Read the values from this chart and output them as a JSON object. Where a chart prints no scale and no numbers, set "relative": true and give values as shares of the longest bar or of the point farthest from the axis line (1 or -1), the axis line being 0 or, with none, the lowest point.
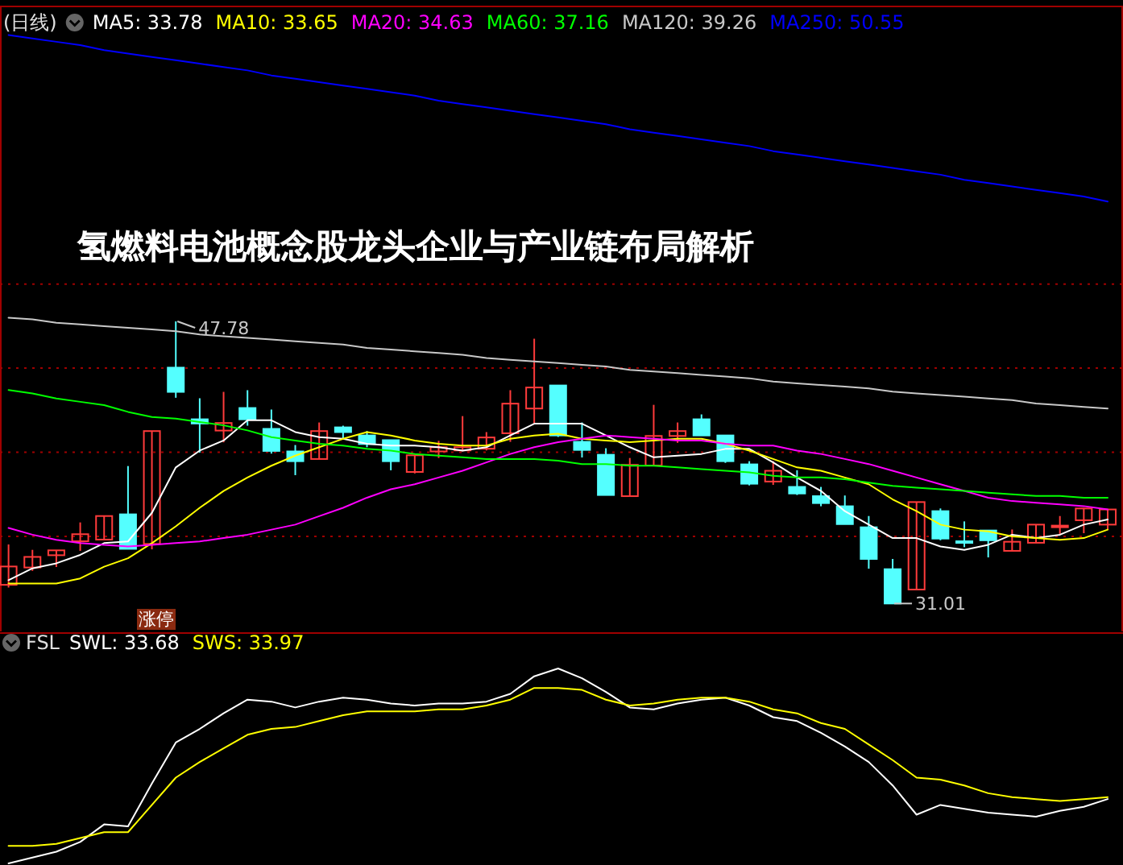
{
  "chart_data": [
    {
      "type": "candlestick",
      "title": "氢燃料电池概念股龙头企业与产业链布局解析",
      "tick_labels": false,
      "grid": "y",
      "legend": "top left",
      "categories": [
        null,
        null,
        null,
        null,
        null,
        null,
        null,
        null,
        null,
        null,
        null,
        null,
        null,
        null,
        null,
        null,
        null,
        null,
        null,
        null,
        null,
        null,
        null,
        null,
        null,
        null,
        null,
        null,
        null,
        null,
        null,
        null,
        null,
        null,
        null,
        null,
        null,
        null,
        null,
        null,
        null,
        null,
        null,
        null,
        null,
        null,
        null
      ],
      "ylim": [
        29.35,
        66.5
      ],
      "yticks": [
        {
          "value": 35,
          "label": null
        },
        {
          "value": 40,
          "label": null
        },
        {
          "value": 45,
          "label": null
        },
        {
          "value": 50,
          "label": null
        }
      ],
      "annotations": [
        "(日线)",
        "47.78",
        "31.01",
        "涨停"
      ],
      "ohlc": [
        [
          32.12,
          34.52,
          31.96,
          33.21
        ],
        [
          33.15,
          34.2,
          32.95,
          33.78
        ],
        [
          33.88,
          34.17,
          33.18,
          34.17
        ],
        [
          34.71,
          35.83,
          34.14,
          35.13
        ],
        [
          34.81,
          36.21,
          34.81,
          36.21
        ],
        [
          36.31,
          39.18,
          34.26,
          34.26
        ],
        [
          34.55,
          41.26,
          34.23,
          41.26
        ],
        [
          45.03,
          47.78,
          43.24,
          43.59
        ],
        [
          41.96,
          43.21,
          39.98,
          41.71
        ],
        [
          41.29,
          43.59,
          40.59,
          41.74
        ],
        [
          42.63,
          43.69,
          41.58,
          41.96
        ],
        [
          41.39,
          42.54,
          39.92,
          40.08
        ],
        [
          40.05,
          40.43,
          38.64,
          39.47
        ],
        [
          39.6,
          41.77,
          39.6,
          41.26
        ],
        [
          41.48,
          41.58,
          40.75,
          41.2
        ],
        [
          41.0,
          41.26,
          40.3,
          40.49
        ],
        [
          40.72,
          40.72,
          38.93,
          39.47
        ],
        [
          38.83,
          39.82,
          38.74,
          39.82
        ],
        [
          40.05,
          40.68,
          39.66,
          40.3
        ],
        [
          40.11,
          42.15,
          40.05,
          40.3
        ],
        [
          40.21,
          41.2,
          40.11,
          40.88
        ],
        [
          41.13,
          43.69,
          40.62,
          42.89
        ],
        [
          42.6,
          46.75,
          41.71,
          43.85
        ],
        [
          43.97,
          43.97,
          40.91,
          41.0
        ],
        [
          40.62,
          41.77,
          39.69,
          40.14
        ],
        [
          39.85,
          40.24,
          37.46,
          37.46
        ],
        [
          37.39,
          39.66,
          37.39,
          39.25
        ],
        [
          39.21,
          42.82,
          39.21,
          40.97
        ],
        [
          40.97,
          41.77,
          40.56,
          41.26
        ],
        [
          41.96,
          42.25,
          41.0,
          41.0
        ],
        [
          41.0,
          41.0,
          39.37,
          39.47
        ],
        [
          39.28,
          39.47,
          38.03,
          38.13
        ],
        [
          38.26,
          39.47,
          38.06,
          38.9
        ],
        [
          37.94,
          38.93,
          37.46,
          37.55
        ],
        [
          37.39,
          37.94,
          36.79,
          36.98
        ],
        [
          36.79,
          37.43,
          35.73,
          35.73
        ],
        [
          35.54,
          36.21,
          33.08,
          33.66
        ],
        [
          33.05,
          33.66,
          31.01,
          31.01
        ],
        [
          31.84,
          37.04,
          31.84,
          37.04
        ],
        [
          36.5,
          36.66,
          34.77,
          34.87
        ],
        [
          34.71,
          35.89,
          34.36,
          34.62
        ],
        [
          35.35,
          35.35,
          33.75,
          34.77
        ],
        [
          34.14,
          35.41,
          34.14,
          34.68
        ],
        [
          34.62,
          35.7,
          34.62,
          35.7
        ],
        [
          35.57,
          36.21,
          35.09,
          35.64
        ],
        [
          35.96,
          36.66,
          35.19,
          36.66
        ],
        [
          35.7,
          36.6,
          35.41,
          36.6
        ]
      ],
      "series": [
        {
          "name": "MA5: 33.78",
          "type": "line",
          "color": "#ffffff",
          "values": [
            32.4,
            33.1,
            33.4,
            33.9,
            34.6,
            34.7,
            36.4,
            39.1,
            40.1,
            40.7,
            41.9,
            41.9,
            41.2,
            40.9,
            40.8,
            40.5,
            40.4,
            40.4,
            40.3,
            40.1,
            40.3,
            41.0,
            41.7,
            41.7,
            41.7,
            41.0,
            40.3,
            39.7,
            39.8,
            39.9,
            40.2,
            40.2,
            39.4,
            38.5,
            37.7,
            36.5,
            35.7,
            34.9,
            34.9,
            34.4,
            34.2,
            34.5,
            35.1,
            34.9,
            35.1,
            35.7,
            36.0
          ]
        },
        {
          "name": "MA10: 33.65",
          "type": "line",
          "color": "#ffff00",
          "values": [
            32.2,
            32.2,
            32.2,
            32.5,
            33.2,
            33.7,
            34.6,
            35.6,
            36.7,
            37.7,
            38.5,
            39.2,
            39.8,
            40.3,
            40.8,
            41.2,
            41.0,
            40.7,
            40.5,
            40.4,
            40.4,
            40.8,
            41.0,
            41.1,
            40.8,
            40.7,
            40.6,
            40.7,
            40.8,
            40.8,
            40.5,
            40.1,
            39.6,
            39.1,
            38.9,
            38.5,
            38.1,
            37.2,
            36.5,
            35.7,
            35.4,
            35.3,
            35.0,
            34.9,
            34.8,
            34.9,
            35.4
          ]
        },
        {
          "name": "MA20: 34.63",
          "type": "line",
          "color": "#ff00ff",
          "values": [
            35.5,
            35.1,
            34.8,
            34.6,
            34.5,
            34.4,
            34.5,
            34.6,
            34.7,
            34.9,
            35.1,
            35.4,
            35.7,
            36.2,
            36.7,
            37.3,
            37.8,
            38.1,
            38.5,
            38.9,
            39.4,
            39.9,
            40.3,
            40.6,
            40.8,
            41.0,
            40.9,
            40.8,
            40.7,
            40.7,
            40.5,
            40.4,
            40.4,
            40.1,
            39.9,
            39.6,
            39.3,
            38.9,
            38.5,
            38.1,
            37.7,
            37.3,
            37.1,
            37.0,
            36.9,
            36.8,
            36.6
          ]
        },
        {
          "name": "MA60: 37.16",
          "type": "line",
          "color": "#00ff00",
          "values": [
            43.7,
            43.5,
            43.2,
            43.0,
            42.8,
            42.4,
            42.1,
            42.0,
            41.8,
            41.6,
            41.3,
            40.9,
            40.7,
            40.5,
            40.4,
            40.2,
            40.1,
            39.9,
            39.8,
            39.7,
            39.6,
            39.6,
            39.6,
            39.5,
            39.3,
            39.3,
            39.2,
            39.2,
            39.1,
            39.0,
            38.9,
            38.8,
            38.6,
            38.5,
            38.5,
            38.4,
            38.2,
            38.0,
            37.9,
            37.8,
            37.7,
            37.6,
            37.5,
            37.4,
            37.4,
            37.3,
            37.3
          ]
        },
        {
          "name": "MA120: 39.26",
          "type": "line",
          "color": "#c8c8c8",
          "values": [
            48.0,
            47.9,
            47.7,
            47.6,
            47.5,
            47.4,
            47.3,
            47.2,
            47.0,
            46.9,
            46.8,
            46.7,
            46.6,
            46.5,
            46.4,
            46.2,
            46.1,
            46.0,
            45.9,
            45.8,
            45.6,
            45.5,
            45.4,
            45.3,
            45.2,
            45.1,
            44.9,
            44.8,
            44.7,
            44.6,
            44.5,
            44.4,
            44.2,
            44.1,
            44.0,
            43.9,
            43.8,
            43.6,
            43.5,
            43.4,
            43.3,
            43.2,
            43.1,
            42.9,
            42.8,
            42.7,
            42.6
          ]
        },
        {
          "name": "MA250: 50.55",
          "type": "line",
          "color": "#0000ff",
          "values": [
            64.8,
            64.6,
            64.4,
            64.2,
            63.9,
            63.7,
            63.5,
            63.3,
            63.1,
            62.9,
            62.7,
            62.4,
            62.2,
            62.0,
            61.8,
            61.6,
            61.4,
            61.2,
            60.9,
            60.7,
            60.5,
            60.3,
            60.1,
            59.9,
            59.7,
            59.5,
            59.2,
            59.0,
            58.8,
            58.6,
            58.4,
            58.2,
            57.9,
            57.7,
            57.5,
            57.3,
            57.1,
            56.9,
            56.7,
            56.5,
            56.2,
            56.0,
            55.8,
            55.6,
            55.4,
            55.2,
            54.9
          ]
        }
      ]
    },
    {
      "type": "line",
      "title": "FSL",
      "relative": true,
      "tick_labels": false,
      "legend": "top left",
      "categories": [
        null,
        null,
        null,
        null,
        null,
        null,
        null,
        null,
        null,
        null,
        null,
        null,
        null,
        null,
        null,
        null,
        null,
        null,
        null,
        null,
        null,
        null,
        null,
        null,
        null,
        null,
        null,
        null,
        null,
        null,
        null,
        null,
        null,
        null,
        null,
        null,
        null,
        null,
        null,
        null,
        null,
        null,
        null,
        null,
        null,
        null,
        null
      ],
      "series": [
        {
          "name": "SWL: 33.68",
          "color": "#ffffff",
          "values": [
            0,
            0.03,
            0.06,
            0.11,
            0.2,
            0.19,
            0.41,
            0.62,
            0.69,
            0.77,
            0.84,
            0.83,
            0.8,
            0.83,
            0.85,
            0.84,
            0.82,
            0.81,
            0.82,
            0.82,
            0.83,
            0.87,
            0.96,
            1,
            0.95,
            0.88,
            0.8,
            0.79,
            0.82,
            0.84,
            0.85,
            0.81,
            0.75,
            0.73,
            0.67,
            0.6,
            0.52,
            0.4,
            0.25,
            0.3,
            0.28,
            0.26,
            0.25,
            0.24,
            0.27,
            0.29,
            0.33
          ]
        },
        {
          "name": "SWS: 33.97",
          "color": "#ffff00",
          "values": [
            0.09,
            0.09,
            0.1,
            0.13,
            0.16,
            0.16,
            0.3,
            0.44,
            0.52,
            0.59,
            0.66,
            0.69,
            0.7,
            0.73,
            0.76,
            0.78,
            0.78,
            0.78,
            0.79,
            0.79,
            0.81,
            0.84,
            0.9,
            0.9,
            0.89,
            0.84,
            0.81,
            0.82,
            0.84,
            0.85,
            0.85,
            0.83,
            0.79,
            0.77,
            0.72,
            0.69,
            0.61,
            0.53,
            0.44,
            0.43,
            0.4,
            0.36,
            0.34,
            0.33,
            0.32,
            0.33,
            0.34
          ]
        }
      ]
    }
  ]
}
